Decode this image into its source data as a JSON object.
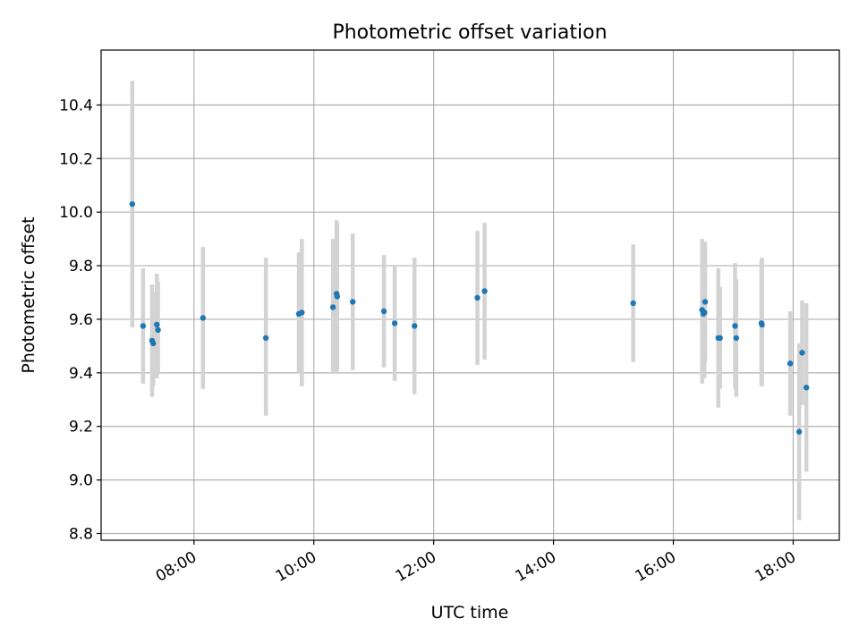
{
  "chart_data": {
    "type": "scatter",
    "title": "Photometric offset variation",
    "xlabel": "UTC time",
    "ylabel": "Photometric offset",
    "x_unit": "hours UTC",
    "xlim": [
      6.45,
      18.77
    ],
    "ylim": [
      8.775,
      10.605
    ],
    "grid": true,
    "legend": "none",
    "colors": {
      "points": "#1f77b4",
      "error_bars": "#d3d3d3"
    },
    "x_ticks": [
      {
        "value": 8,
        "label": "08:00"
      },
      {
        "value": 10,
        "label": "10:00"
      },
      {
        "value": 12,
        "label": "12:00"
      },
      {
        "value": 14,
        "label": "14:00"
      },
      {
        "value": 16,
        "label": "16:00"
      },
      {
        "value": 18,
        "label": "18:00"
      }
    ],
    "y_ticks": [
      {
        "value": 8.8,
        "label": "8.8"
      },
      {
        "value": 9.0,
        "label": "9.0"
      },
      {
        "value": 9.2,
        "label": "9.2"
      },
      {
        "value": 9.4,
        "label": "9.4"
      },
      {
        "value": 9.6,
        "label": "9.6"
      },
      {
        "value": 9.8,
        "label": "9.8"
      },
      {
        "value": 10.0,
        "label": "10.0"
      },
      {
        "value": 10.2,
        "label": "10.2"
      },
      {
        "value": 10.4,
        "label": "10.4"
      }
    ],
    "points": [
      {
        "x": 6.97,
        "y": 10.03,
        "ylow": 9.57,
        "yhigh": 10.49
      },
      {
        "x": 7.15,
        "y": 9.575,
        "ylow": 9.36,
        "yhigh": 9.79
      },
      {
        "x": 7.3,
        "y": 9.52,
        "ylow": 9.31,
        "yhigh": 9.73
      },
      {
        "x": 7.32,
        "y": 9.51,
        "ylow": 9.35,
        "yhigh": 9.7
      },
      {
        "x": 7.38,
        "y": 9.58,
        "ylow": 9.38,
        "yhigh": 9.77
      },
      {
        "x": 7.4,
        "y": 9.56,
        "ylow": 9.4,
        "yhigh": 9.74
      },
      {
        "x": 8.15,
        "y": 9.605,
        "ylow": 9.34,
        "yhigh": 9.87
      },
      {
        "x": 9.2,
        "y": 9.53,
        "ylow": 9.24,
        "yhigh": 9.83
      },
      {
        "x": 9.75,
        "y": 9.62,
        "ylow": 9.4,
        "yhigh": 9.85
      },
      {
        "x": 9.8,
        "y": 9.625,
        "ylow": 9.35,
        "yhigh": 9.9
      },
      {
        "x": 10.32,
        "y": 9.645,
        "ylow": 9.4,
        "yhigh": 9.9
      },
      {
        "x": 10.38,
        "y": 9.695,
        "ylow": 9.4,
        "yhigh": 9.97
      },
      {
        "x": 10.39,
        "y": 9.685,
        "ylow": 9.41,
        "yhigh": 9.96
      },
      {
        "x": 10.65,
        "y": 9.665,
        "ylow": 9.41,
        "yhigh": 9.92
      },
      {
        "x": 11.17,
        "y": 9.63,
        "ylow": 9.42,
        "yhigh": 9.84
      },
      {
        "x": 11.35,
        "y": 9.585,
        "ylow": 9.37,
        "yhigh": 9.8
      },
      {
        "x": 11.68,
        "y": 9.575,
        "ylow": 9.32,
        "yhigh": 9.83
      },
      {
        "x": 12.73,
        "y": 9.68,
        "ylow": 9.43,
        "yhigh": 9.93
      },
      {
        "x": 12.85,
        "y": 9.705,
        "ylow": 9.45,
        "yhigh": 9.96
      },
      {
        "x": 15.33,
        "y": 9.66,
        "ylow": 9.44,
        "yhigh": 9.88
      },
      {
        "x": 16.48,
        "y": 9.635,
        "ylow": 9.36,
        "yhigh": 9.9
      },
      {
        "x": 16.5,
        "y": 9.62,
        "ylow": 9.4,
        "yhigh": 9.85
      },
      {
        "x": 16.52,
        "y": 9.625,
        "ylow": 9.38,
        "yhigh": 9.87
      },
      {
        "x": 16.53,
        "y": 9.665,
        "ylow": 9.44,
        "yhigh": 9.89
      },
      {
        "x": 16.75,
        "y": 9.53,
        "ylow": 9.27,
        "yhigh": 9.79
      },
      {
        "x": 16.78,
        "y": 9.53,
        "ylow": 9.34,
        "yhigh": 9.72
      },
      {
        "x": 17.03,
        "y": 9.575,
        "ylow": 9.34,
        "yhigh": 9.81
      },
      {
        "x": 17.05,
        "y": 9.53,
        "ylow": 9.31,
        "yhigh": 9.75
      },
      {
        "x": 17.47,
        "y": 9.585,
        "ylow": 9.35,
        "yhigh": 9.82
      },
      {
        "x": 17.48,
        "y": 9.58,
        "ylow": 9.35,
        "yhigh": 9.83
      },
      {
        "x": 17.95,
        "y": 9.435,
        "ylow": 9.24,
        "yhigh": 9.63
      },
      {
        "x": 18.1,
        "y": 9.18,
        "ylow": 8.85,
        "yhigh": 9.51
      },
      {
        "x": 18.15,
        "y": 9.475,
        "ylow": 9.28,
        "yhigh": 9.67
      },
      {
        "x": 18.22,
        "y": 9.345,
        "ylow": 9.03,
        "yhigh": 9.66
      }
    ]
  }
}
